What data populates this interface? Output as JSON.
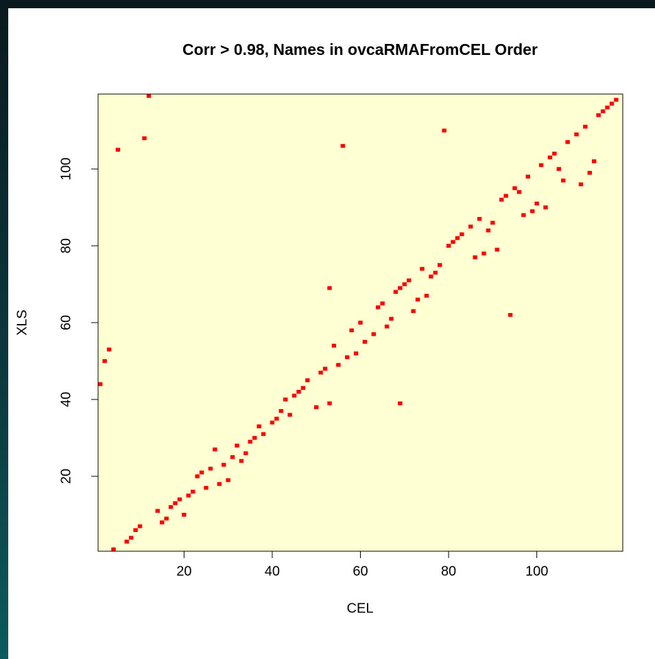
{
  "chart_data": {
    "type": "scatter",
    "title": "Corr > 0.98, Names in ovcaRMAFromCEL Order",
    "x_label": "CEL",
    "y_label": "XLS",
    "color": "#ff0000",
    "background": "#ffffd4",
    "xlim": [
      0.5,
      119.5
    ],
    "ylim": [
      0.5,
      119.5
    ],
    "xticks": [
      20,
      40,
      60,
      80,
      100
    ],
    "yticks": [
      20,
      40,
      60,
      80,
      100
    ],
    "x": [
      1,
      2,
      3,
      4,
      5,
      11,
      12,
      7,
      8,
      9,
      10,
      14,
      15,
      16,
      17,
      18,
      19,
      20,
      21,
      22,
      23,
      24,
      25,
      26,
      27,
      28,
      29,
      30,
      31,
      32,
      33,
      34,
      35,
      36,
      37,
      38,
      40,
      41,
      42,
      43,
      44,
      45,
      46,
      47,
      48,
      50,
      51,
      52,
      53,
      53,
      54,
      55,
      56,
      57,
      58,
      59,
      60,
      61,
      63,
      64,
      65,
      66,
      67,
      68,
      69,
      69,
      70,
      71,
      72,
      73,
      74,
      75,
      76,
      77,
      78,
      79,
      80,
      81,
      82,
      83,
      85,
      86,
      87,
      88,
      89,
      90,
      91,
      92,
      93,
      94,
      95,
      96,
      97,
      98,
      99,
      100,
      101,
      102,
      103,
      104,
      105,
      106,
      107,
      109,
      110,
      111,
      112,
      113,
      114,
      115,
      116,
      117,
      118
    ],
    "y": [
      44,
      50,
      53,
      1,
      105,
      108,
      119,
      3,
      4,
      6,
      7,
      11,
      8,
      9,
      12,
      13,
      14,
      10,
      15,
      16,
      20,
      21,
      17,
      22,
      27,
      18,
      23,
      19,
      25,
      28,
      24,
      26,
      29,
      30,
      33,
      31,
      34,
      35,
      37,
      40,
      36,
      41,
      42,
      43,
      45,
      38,
      47,
      48,
      39,
      69,
      54,
      49,
      106,
      51,
      58,
      52,
      60,
      55,
      57,
      64,
      65,
      59,
      61,
      68,
      69,
      39,
      70,
      71,
      63,
      66,
      74,
      67,
      72,
      73,
      75,
      110,
      80,
      81,
      82,
      83,
      85,
      77,
      87,
      78,
      84,
      86,
      79,
      92,
      93,
      62,
      95,
      94,
      88,
      98,
      89,
      91,
      101,
      90,
      103,
      104,
      100,
      97,
      107,
      109,
      96,
      111,
      99,
      102,
      114,
      115,
      116,
      117,
      118
    ]
  }
}
